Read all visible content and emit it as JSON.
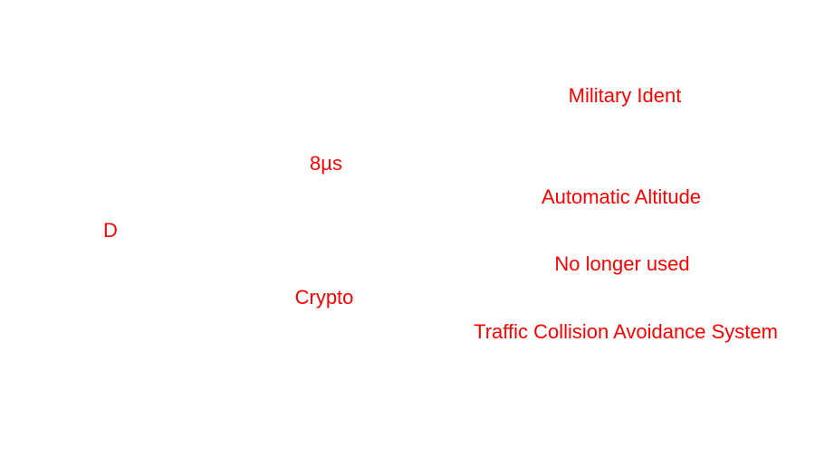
{
  "labels": {
    "military_ident": "Military Ident",
    "pulse_8us": "8µs",
    "automatic_altitude": "Automatic Altitude",
    "mode_d": "D",
    "no_longer_used": "No longer used",
    "crypto": "Crypto",
    "tcas": "Traffic Collision Avoidance System"
  },
  "colors": {
    "text": "#ff0000",
    "background": "#ffffff"
  }
}
